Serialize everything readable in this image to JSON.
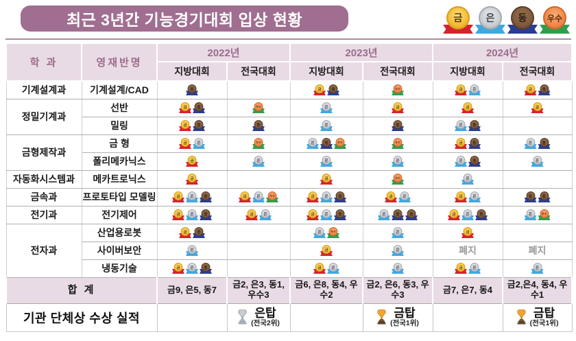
{
  "title": "최근 3년간 기능경기대회 입상 현황",
  "colors": {
    "accent": "#a06e90",
    "header_bg": "#e9dbe5",
    "rule": "#a98ba0",
    "discontinued_text": "#9a9a9a"
  },
  "legend": [
    {
      "type": "gold",
      "label": "금"
    },
    {
      "type": "silver",
      "label": "은"
    },
    {
      "type": "bronze",
      "label": "동"
    },
    {
      "type": "excellence",
      "label": "우수"
    }
  ],
  "medal_colors": {
    "gold": {
      "coin_light": "#fadf7a",
      "coin": "#f3bb33",
      "edge": "#d99c1c",
      "ribbon": "#d5232e",
      "text": "#5a3b08"
    },
    "silver": {
      "coin_light": "#e8eaed",
      "coin": "#c9ccd1",
      "edge": "#a4a9b1",
      "ribbon": "#3fa8e0",
      "text": "#3c4148"
    },
    "bronze": {
      "coin_light": "#967150",
      "coin": "#7d5a3e",
      "edge": "#5c3e26",
      "ribbon": "#2b3d91",
      "text": "#2e1d0f"
    },
    "excellence": {
      "coin_light": "#f7ae7a",
      "coin": "#ef8749",
      "edge": "#d2652a",
      "ribbon": "#2f9e4c",
      "text": "#5c2c08"
    }
  },
  "trophy_colors": {
    "gold": {
      "cup": "#f6a52a",
      "edge": "#c97d12",
      "base": "#5f4426"
    },
    "silver": {
      "cup": "#c9cdd2",
      "edge": "#9aa0a8",
      "base": "#a6acb4"
    }
  },
  "table": {
    "col_dept": "학 과",
    "col_class": "영재반명",
    "years": [
      {
        "label": "2022년",
        "sub": [
          "지방대회",
          "전국대회"
        ]
      },
      {
        "label": "2023년",
        "sub": [
          "지방대회",
          "전국대회"
        ]
      },
      {
        "label": "2024년",
        "sub": [
          "지방대회",
          "전국대회"
        ]
      }
    ],
    "discontinued_label": "폐지",
    "groups": [
      {
        "dept": "기계설계과",
        "rows": [
          {
            "class": "기계설계/CAD",
            "cells": [
              [
                "bronze"
              ],
              [],
              [
                "gold",
                "bronze"
              ],
              [
                "excellence"
              ],
              [
                "gold",
                "silver"
              ],
              [
                "gold",
                "bronze"
              ]
            ]
          }
        ]
      },
      {
        "dept": "정밀기계과",
        "rows": [
          {
            "class": "선반",
            "cells": [
              [
                "gold",
                "bronze"
              ],
              [
                "excellence"
              ],
              [
                "silver"
              ],
              [
                "gold"
              ],
              [
                "gold"
              ],
              [
                "gold"
              ]
            ]
          },
          {
            "class": "밀링",
            "cells": [
              [
                "gold",
                "bronze"
              ],
              [
                "bronze"
              ],
              [
                "silver"
              ],
              [
                "bronze"
              ],
              [
                "silver",
                "bronze"
              ],
              []
            ]
          }
        ]
      },
      {
        "dept": "금형제작과",
        "rows": [
          {
            "class": "금 형",
            "cells": [
              [
                "gold",
                "silver"
              ],
              [
                "excellence"
              ],
              [
                "silver",
                "bronze",
                "excellence"
              ],
              [
                "excellence"
              ],
              [
                "gold",
                "bronze"
              ],
              [
                "silver",
                "bronze"
              ]
            ]
          },
          {
            "class": "폴리메카닉스",
            "cells": [
              [
                "gold"
              ],
              [
                "silver"
              ],
              [
                "silver"
              ],
              [
                "silver"
              ],
              [
                "silver",
                "bronze"
              ],
              [
                "silver"
              ]
            ]
          }
        ]
      },
      {
        "dept": "자동화시스템과",
        "rows": [
          {
            "class": "메카트로닉스",
            "cells": [
              [
                "gold"
              ],
              [],
              [
                "gold"
              ],
              [
                "excellence"
              ],
              [
                "silver"
              ],
              []
            ]
          }
        ]
      },
      {
        "dept": "금속과",
        "rows": [
          {
            "class": "프로토타입 모델링",
            "cells": [
              [
                "gold",
                "silver",
                "bronze"
              ],
              [
                "gold",
                "silver",
                "excellence"
              ],
              [
                "gold",
                "silver",
                "bronze"
              ],
              [
                "gold",
                "silver"
              ],
              [
                "gold",
                "silver"
              ],
              [
                "bronze",
                "bronze"
              ]
            ]
          }
        ]
      },
      {
        "dept": "전기과",
        "rows": [
          {
            "class": "전기제어",
            "cells": [
              [
                "gold",
                "silver",
                "bronze"
              ],
              [
                "gold",
                "silver"
              ],
              [
                "gold",
                "silver",
                "bronze"
              ],
              [
                "silver",
                "bronze",
                "bronze"
              ],
              [
                "gold",
                "silver",
                "bronze"
              ],
              [
                "silver",
                "excellence"
              ]
            ]
          }
        ]
      },
      {
        "dept": "전자과",
        "rows": [
          {
            "class": "산업용로봇",
            "cells": [
              [
                "gold",
                "bronze"
              ],
              [],
              [
                "silver",
                "excellence"
              ],
              [
                "silver"
              ],
              [
                "gold"
              ],
              []
            ]
          },
          {
            "class": "사이버보안",
            "cells": [
              [
                "silver"
              ],
              [],
              [
                "gold"
              ],
              [
                "silver"
              ],
              "폐지",
              "폐지"
            ]
          },
          {
            "class": "냉동기술",
            "cells": [
              [
                "gold",
                "silver",
                "bronze"
              ],
              [],
              [
                "gold",
                "silver"
              ],
              [
                "silver"
              ],
              [
                "gold",
                "silver"
              ],
              [
                "silver"
              ]
            ]
          }
        ]
      }
    ],
    "totals": {
      "label": "합 계",
      "values": [
        "금9, 은5, 동7",
        "금2, 은3, 동1, 우수3",
        "금6, 은8, 동4, 우수2",
        "금2, 은6, 동3, 우수3",
        "금7, 은7, 동4",
        "금2,은4, 동4, 우수1"
      ]
    },
    "awards": {
      "label": "기관 단체상 수상 실적",
      "cells": [
        null,
        {
          "trophy": "silver",
          "title": "은탑",
          "sub": "(전국2위)"
        },
        null,
        {
          "trophy": "gold",
          "title": "금탑",
          "sub": "(전국1위)"
        },
        null,
        {
          "trophy": "gold",
          "title": "금탑",
          "sub": "(전국1위)"
        }
      ]
    }
  }
}
